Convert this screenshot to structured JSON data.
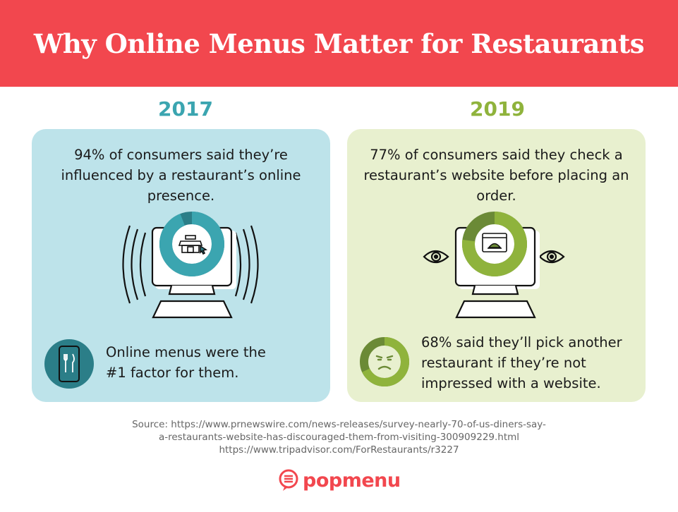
{
  "title": "Why Online Menus Matter for Restaurants",
  "colors": {
    "brand_red": "#f2474e",
    "teal": "#3ba5b0",
    "teal_dark": "#2b7e88",
    "green": "#8fb33c",
    "green_dark": "#6b8a36",
    "left_bg": "#bde3ea",
    "right_bg": "#e8f0cf"
  },
  "left": {
    "year": "2017",
    "stat": "94% of consumers said they’re influenced by a restaurant’s online presence.",
    "donut_percent": 94,
    "icon": "storefront-cursor-icon",
    "footer": "Online menus were the #1 factor for them.",
    "footer_icon": "phone-fork-knife-icon"
  },
  "right": {
    "year": "2019",
    "stat": "77% of consumers said they check a restaurant’s website before placing an order.",
    "donut_percent": 77,
    "icon": "browser-cloche-icon",
    "footer": "68% said they’ll pick another restaurant if they’re not impressed with a website.",
    "footer_donut_percent": 68,
    "footer_icon": "unimpressed-face-icon"
  },
  "source": {
    "line1": "Source: https://www.prnewswire.com/news-releases/survey-nearly-70-of-us-diners-say-",
    "line2": "a-restaurants-website-has-discouraged-them-from-visiting-300909229.html",
    "line3": "https://www.tripadvisor.com/ForRestaurants/r3227"
  },
  "logo": "popmenu"
}
